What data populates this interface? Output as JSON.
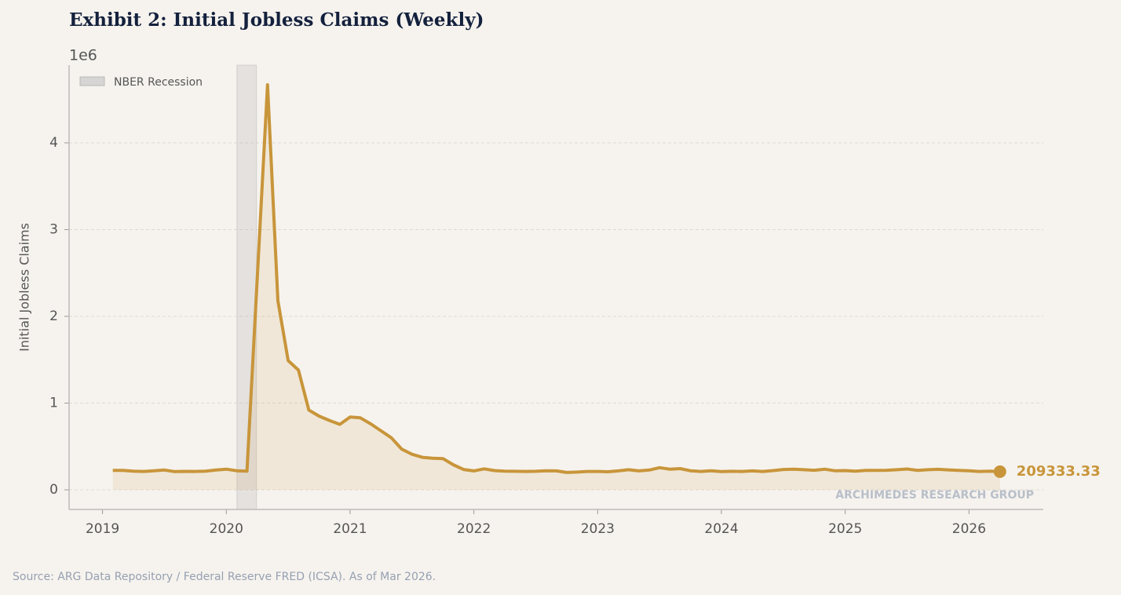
{
  "chart_data": {
    "type": "line",
    "title": "Exhibit 2: Initial Jobless Claims (Weekly)",
    "y_label": "Initial Jobless Claims",
    "y_offset_label": "1e6",
    "source": "Source: ARG Data Repository / Federal Reserve FRED (ICSA). As of Mar 2026.",
    "watermark": "ARCHIMEDES RESEARCH GROUP",
    "recession": {
      "name": "NBER Recession",
      "start": 2020.086,
      "end": 2020.244,
      "color": "#b8b8b8"
    },
    "legend": "upper left",
    "grid": true,
    "x": [
      2019.083,
      2019.167,
      2019.25,
      2019.333,
      2019.417,
      2019.5,
      2019.583,
      2019.667,
      2019.75,
      2019.833,
      2019.917,
      2020,
      2020.083,
      2020.167,
      2020.25,
      2020.333,
      2020.417,
      2020.5,
      2020.583,
      2020.667,
      2020.75,
      2020.833,
      2020.917,
      2021,
      2021.083,
      2021.167,
      2021.25,
      2021.333,
      2021.417,
      2021.5,
      2021.583,
      2021.667,
      2021.75,
      2021.833,
      2021.917,
      2022,
      2022.083,
      2022.167,
      2022.25,
      2022.333,
      2022.417,
      2022.5,
      2022.583,
      2022.667,
      2022.75,
      2022.833,
      2022.917,
      2023,
      2023.083,
      2023.167,
      2023.25,
      2023.333,
      2023.417,
      2023.5,
      2023.583,
      2023.667,
      2023.75,
      2023.833,
      2023.917,
      2024,
      2024.083,
      2024.167,
      2024.25,
      2024.333,
      2024.417,
      2024.5,
      2024.583,
      2024.667,
      2024.75,
      2024.833,
      2024.917,
      2025,
      2025.083,
      2025.167,
      2025.25,
      2025.333,
      2025.417,
      2025.5,
      2025.583,
      2025.667,
      2025.75,
      2025.833,
      2025.917,
      2026,
      2026.083,
      2026.167,
      2026.25
    ],
    "series": [
      {
        "color": "#c8953a",
        "values": [
          225000,
          225000,
          215000,
          212000,
          220000,
          228000,
          210000,
          213000,
          212000,
          216000,
          228000,
          238000,
          220000,
          215000,
          2440000,
          4670000,
          2180000,
          1490000,
          1380000,
          920000,
          850000,
          800000,
          755000,
          840000,
          830000,
          760000,
          680000,
          600000,
          470000,
          410000,
          375000,
          365000,
          360000,
          290000,
          235000,
          218000,
          242000,
          222000,
          216000,
          214000,
          212000,
          214000,
          220000,
          218000,
          200000,
          205000,
          212000,
          212000,
          208000,
          218000,
          232000,
          218000,
          228000,
          255000,
          238000,
          245000,
          220000,
          212000,
          220000,
          210000,
          214000,
          212000,
          218000,
          212000,
          222000,
          235000,
          238000,
          232000,
          226000,
          238000,
          220000,
          222000,
          215000,
          225000,
          224000,
          226000,
          232000,
          240000,
          225000,
          232000,
          236000,
          230000,
          225000,
          220000,
          212000,
          216000,
          209333.33
        ]
      }
    ],
    "xlim": [
      2018.73,
      2026.6
    ],
    "xticks": [
      2019,
      2020,
      2021,
      2022,
      2023,
      2024,
      2025,
      2026
    ],
    "ylim": [
      -226000,
      4896000
    ],
    "yticks": [
      0,
      {
        "value": 1000000,
        "label": "1"
      },
      {
        "value": 2000000,
        "label": "2"
      },
      {
        "value": 3000000,
        "label": "3"
      },
      {
        "value": 4000000,
        "label": "4"
      }
    ]
  }
}
